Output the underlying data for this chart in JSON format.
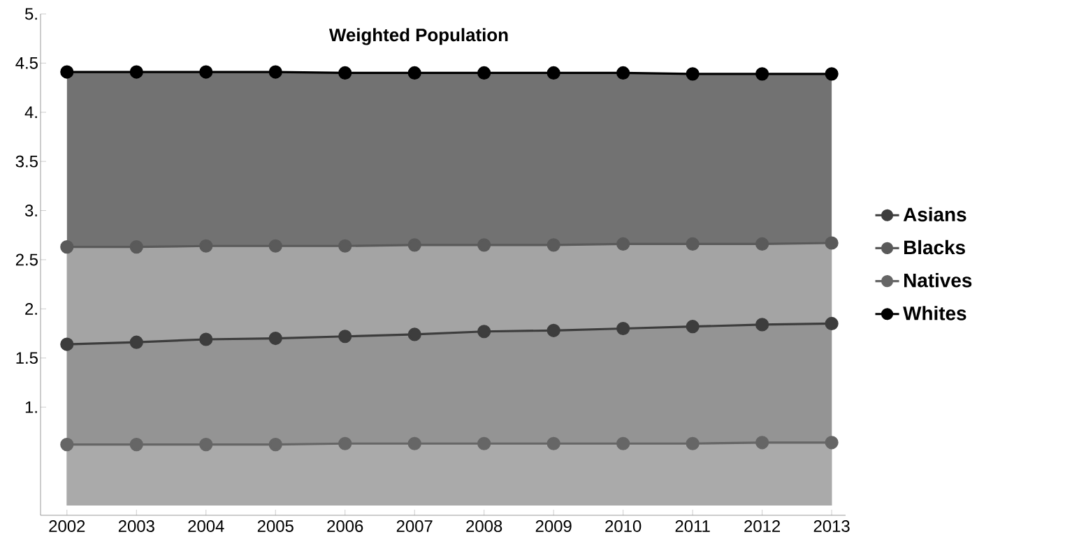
{
  "chart_data": {
    "type": "area",
    "title": "Weighted Population",
    "categories": [
      "2002",
      "2003",
      "2004",
      "2005",
      "2006",
      "2007",
      "2008",
      "2009",
      "2010",
      "2011",
      "2012",
      "2013"
    ],
    "series": [
      {
        "name": "Asians",
        "color": "#3d3d3d",
        "values": [
          1.64,
          1.66,
          1.69,
          1.7,
          1.72,
          1.74,
          1.77,
          1.78,
          1.8,
          1.82,
          1.84,
          1.85
        ]
      },
      {
        "name": "Blacks",
        "color": "#5a5a5a",
        "values": [
          2.63,
          2.63,
          2.64,
          2.64,
          2.64,
          2.65,
          2.65,
          2.65,
          2.66,
          2.66,
          2.66,
          2.67
        ]
      },
      {
        "name": "Natives",
        "color": "#666666",
        "values": [
          0.62,
          0.62,
          0.62,
          0.62,
          0.63,
          0.63,
          0.63,
          0.63,
          0.63,
          0.63,
          0.64,
          0.64
        ]
      },
      {
        "name": "Whites",
        "color": "#000000",
        "values": [
          4.41,
          4.41,
          4.41,
          4.41,
          4.4,
          4.4,
          4.4,
          4.4,
          4.4,
          4.39,
          4.39,
          4.39
        ]
      }
    ],
    "ylim": [
      -0.1,
      5
    ],
    "yticks": [
      {
        "value": 1,
        "label": "1."
      },
      1.5,
      {
        "value": 2,
        "label": "2."
      },
      2.5,
      {
        "value": 3,
        "label": "3."
      },
      3.5,
      {
        "value": 4,
        "label": "4."
      },
      4.5,
      {
        "value": 5,
        "label": "5."
      }
    ],
    "legend": "right",
    "marker": "circle",
    "grid": false
  }
}
